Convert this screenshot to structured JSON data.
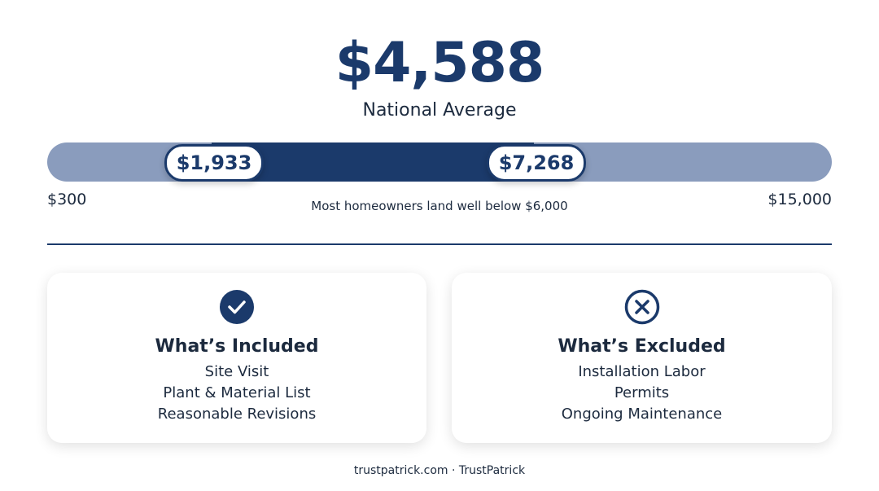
{
  "headline": {
    "value": "$4,588",
    "label": "National Average"
  },
  "range": {
    "low": "$1,933",
    "high": "$7,268",
    "min": "$300",
    "max": "$15,000",
    "note": "Most homeowners land well below $6,000"
  },
  "cards": [
    {
      "title": "What’s Included",
      "items": [
        "Site Visit",
        "Plant & Material List",
        "Reasonable Revisions"
      ]
    },
    {
      "title": "What’s Excluded",
      "items": [
        "Installation Labor",
        "Permits",
        "Ongoing Maintenance"
      ]
    }
  ],
  "footer": "trustpatrick.com · TrustPatrick"
}
